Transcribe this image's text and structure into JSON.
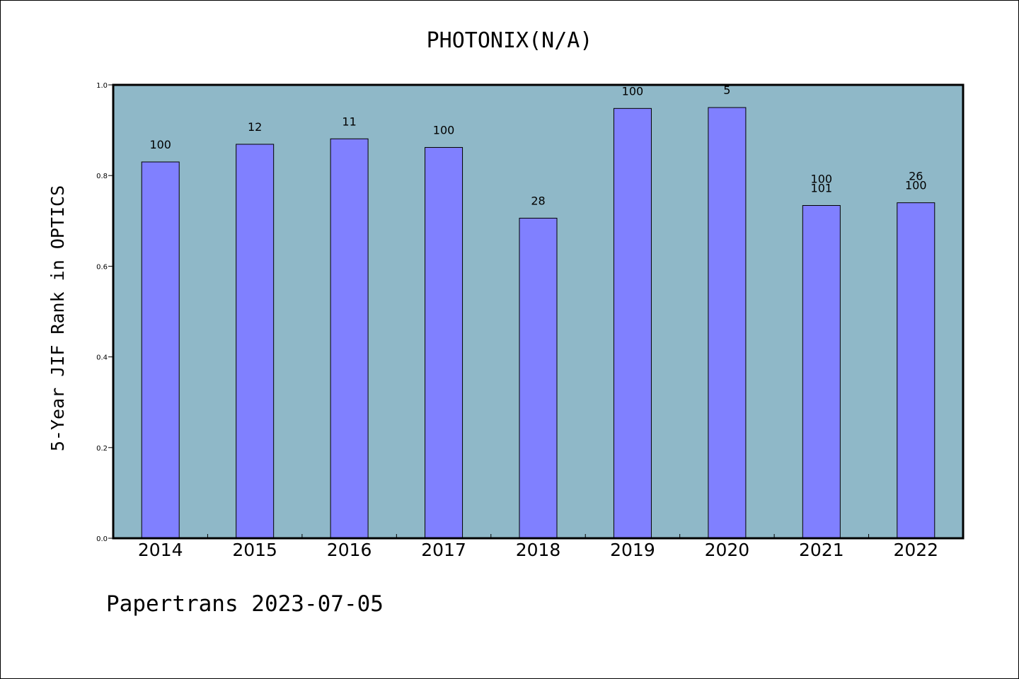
{
  "chart_data": {
    "type": "bar",
    "title": "PHOTONIX(N/A)",
    "xlabel": "",
    "ylabel": "5-Year JIF Rank in OPTICS",
    "categories": [
      "2014",
      "2015",
      "2016",
      "2017",
      "2018",
      "2019",
      "2020",
      "2021",
      "2022"
    ],
    "values": [
      0.83,
      0.869,
      0.881,
      0.862,
      0.706,
      0.948,
      0.95,
      0.734,
      0.74
    ],
    "data_labels": [
      [
        "100"
      ],
      [
        "12"
      ],
      [
        "11"
      ],
      [
        "100"
      ],
      [
        "28"
      ],
      [
        "100"
      ],
      [
        "5"
      ],
      [
        "100",
        "101"
      ],
      [
        "26",
        "100"
      ]
    ],
    "ylim": [
      0,
      1.0
    ],
    "yticks": [
      "0.0",
      "0.2",
      "0.4",
      "0.6",
      "0.8",
      "1.0"
    ],
    "grid": false,
    "legend": "none",
    "colors": {
      "plot_background": "#8fb8c8",
      "bar_fill": "#8080ff",
      "bar_stroke": "#000000"
    }
  },
  "footer": {
    "text": "Papertrans 2023-07-05"
  }
}
